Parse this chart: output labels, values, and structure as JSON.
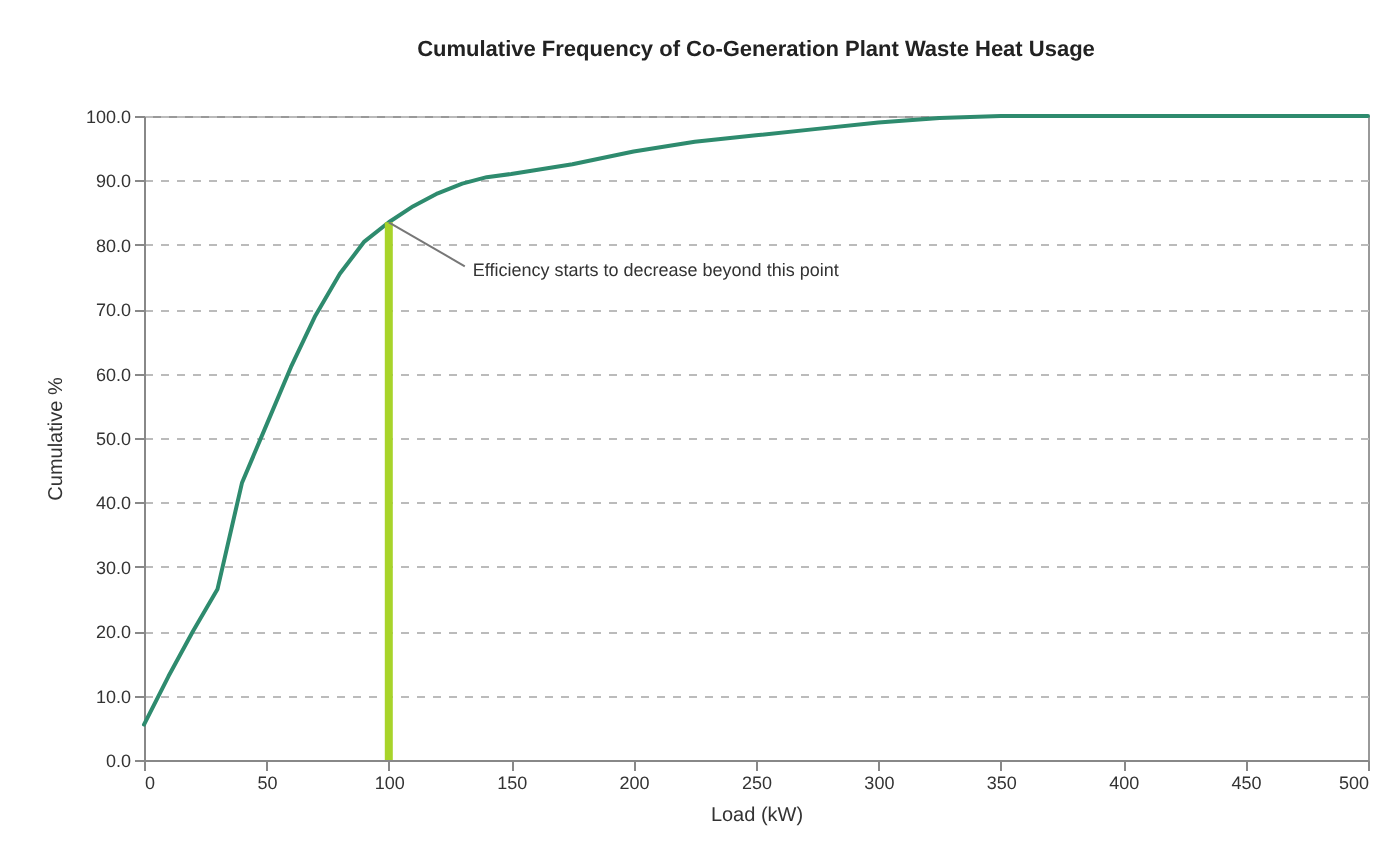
{
  "chart_data": {
    "type": "line",
    "title": "Cumulative Frequency of Co-Generation Plant Waste Heat Usage",
    "xlabel": "Load (kW)",
    "ylabel": "Cumulative %",
    "x": [
      0,
      10,
      20,
      30,
      40,
      50,
      60,
      70,
      80,
      90,
      100,
      110,
      120,
      130,
      140,
      150,
      175,
      200,
      225,
      250,
      275,
      300,
      325,
      350,
      400,
      450,
      500
    ],
    "series": [
      {
        "color": "#2e8b6e",
        "values": [
          5.5,
          13,
          20,
          26.5,
          43,
          52,
          61,
          69,
          75.5,
          80.5,
          83.5,
          86,
          88,
          89.5,
          90.5,
          91,
          92.5,
          94.5,
          96,
          97,
          98,
          99,
          99.7,
          100,
          100,
          100,
          100
        ]
      }
    ],
    "xlim": [
      0,
      500
    ],
    "xticks": [
      0,
      50,
      100,
      150,
      200,
      250,
      300,
      350,
      400,
      450,
      500
    ],
    "ylim": [
      0,
      100
    ],
    "yticks": [
      {
        "value": 0,
        "label": "0.0"
      },
      {
        "value": 10,
        "label": "10.0"
      },
      {
        "value": 20,
        "label": "20.0"
      },
      {
        "value": 30,
        "label": "30.0"
      },
      {
        "value": 40,
        "label": "40.0"
      },
      {
        "value": 50,
        "label": "50.0"
      },
      {
        "value": 60,
        "label": "60.0"
      },
      {
        "value": 70,
        "label": "70.0"
      },
      {
        "value": 80,
        "label": "80.0"
      },
      {
        "value": 90,
        "label": "90.0"
      },
      {
        "value": 100,
        "label": "100.0"
      }
    ],
    "grid": "y",
    "marker": "none",
    "line_style": "solid",
    "ref_lines": [
      {
        "axis": "x",
        "value": 100,
        "color": "#a8d42a"
      }
    ],
    "annotations": [
      {
        "text": "Efficiency starts to decrease beyond this point",
        "x": 100,
        "y": 83.5
      }
    ]
  }
}
